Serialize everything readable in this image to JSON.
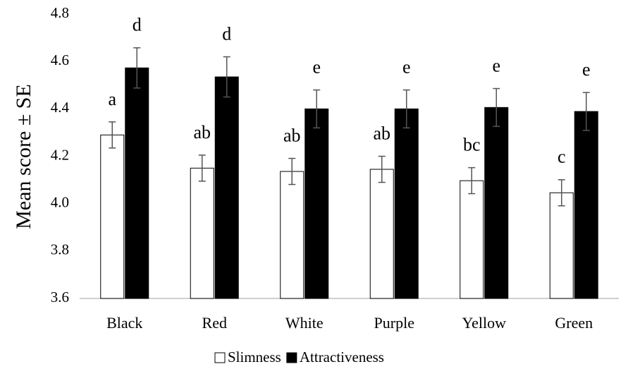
{
  "chart_data": {
    "type": "bar",
    "y_label": "Mean score ± SE",
    "categories": [
      "Black",
      "Red",
      "White",
      "Purple",
      "Yellow",
      "Green"
    ],
    "series": [
      {
        "name": "Slimness",
        "color": "#ffffff",
        "values": [
          4.29,
          4.15,
          4.136,
          4.145,
          4.097,
          4.046
        ],
        "errors": [
          0.055,
          0.055,
          0.055,
          0.055,
          0.055,
          0.055
        ],
        "letters": [
          "a",
          "ab",
          "ab",
          "ab",
          "bc",
          "c"
        ]
      },
      {
        "name": "Attractiveness",
        "color": "#000000",
        "values": [
          4.573,
          4.535,
          4.4,
          4.4,
          4.406,
          4.389
        ],
        "errors": [
          0.085,
          0.085,
          0.08,
          0.08,
          0.08,
          0.08
        ],
        "letters": [
          "d",
          "d",
          "e",
          "e",
          "e",
          "e"
        ]
      }
    ],
    "ylim": [
      3.6,
      4.8
    ],
    "yticks": [
      3.6,
      3.8,
      {
        "value": 4,
        "label": "4.0"
      },
      4.2,
      4.4,
      4.6,
      4.8
    ],
    "legend": "bottom"
  }
}
